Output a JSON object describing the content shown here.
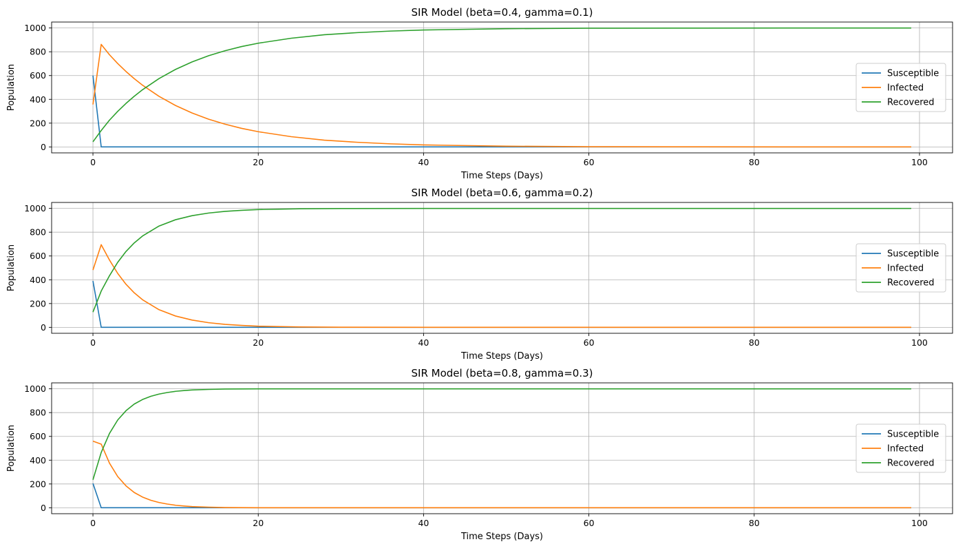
{
  "chart_data": [
    {
      "type": "line",
      "title": "SIR Model (beta=0.4, gamma=0.1)",
      "xlabel": "Time Steps (Days)",
      "ylabel": "Population",
      "xlim": [
        -5,
        104
      ],
      "ylim": [
        -50,
        1050
      ],
      "xticks": [
        0,
        20,
        40,
        60,
        80,
        100
      ],
      "yticks": [
        0,
        200,
        400,
        600,
        800,
        1000
      ],
      "grid": true,
      "legend_position": "center-right",
      "series": [
        {
          "name": "Susceptible",
          "color": "#1f77b4",
          "points": [
            [
              0,
              600
            ],
            [
              1,
              0
            ],
            [
              99,
              0
            ]
          ]
        },
        {
          "name": "Infected",
          "color": "#ff7f0e",
          "points": [
            [
              0,
              357
            ],
            [
              1,
              862
            ],
            [
              2,
              775
            ],
            [
              3,
              701
            ],
            [
              4,
              634
            ],
            [
              5,
              574
            ],
            [
              6,
              519
            ],
            [
              8,
              425
            ],
            [
              10,
              348
            ],
            [
              12,
              285
            ],
            [
              14,
              233
            ],
            [
              16,
              191
            ],
            [
              18,
              156
            ],
            [
              20,
              128
            ],
            [
              24,
              86
            ],
            [
              28,
              57
            ],
            [
              32,
              39
            ],
            [
              36,
              26
            ],
            [
              40,
              17
            ],
            [
              50,
              6
            ],
            [
              60,
              2
            ],
            [
              70,
              1
            ],
            [
              99,
              0
            ]
          ]
        },
        {
          "name": "Recovered",
          "color": "#2ca02c",
          "points": [
            [
              0,
              43
            ],
            [
              1,
              138
            ],
            [
              2,
              225
            ],
            [
              3,
              299
            ],
            [
              4,
              366
            ],
            [
              5,
              426
            ],
            [
              6,
              481
            ],
            [
              8,
              575
            ],
            [
              10,
              652
            ],
            [
              12,
              715
            ],
            [
              14,
              767
            ],
            [
              16,
              809
            ],
            [
              18,
              844
            ],
            [
              20,
              872
            ],
            [
              24,
              914
            ],
            [
              28,
              943
            ],
            [
              32,
              961
            ],
            [
              36,
              974
            ],
            [
              40,
              983
            ],
            [
              50,
              994
            ],
            [
              60,
              998
            ],
            [
              70,
              999
            ],
            [
              99,
              1000
            ]
          ]
        }
      ]
    },
    {
      "type": "line",
      "title": "SIR Model (beta=0.6, gamma=0.2)",
      "xlabel": "Time Steps (Days)",
      "ylabel": "Population",
      "xlim": [
        -5,
        104
      ],
      "ylim": [
        -50,
        1050
      ],
      "xticks": [
        0,
        20,
        40,
        60,
        80,
        100
      ],
      "yticks": [
        0,
        200,
        400,
        600,
        800,
        1000
      ],
      "grid": true,
      "legend_position": "center-right",
      "series": [
        {
          "name": "Susceptible",
          "color": "#1f77b4",
          "points": [
            [
              0,
              390
            ],
            [
              1,
              0
            ],
            [
              99,
              0
            ]
          ]
        },
        {
          "name": "Infected",
          "color": "#ff7f0e",
          "points": [
            [
              0,
              482
            ],
            [
              1,
              695
            ],
            [
              2,
              566
            ],
            [
              3,
              453
            ],
            [
              4,
              362
            ],
            [
              5,
              290
            ],
            [
              6,
              232
            ],
            [
              8,
              148
            ],
            [
              10,
              95
            ],
            [
              12,
              61
            ],
            [
              14,
              39
            ],
            [
              16,
              25
            ],
            [
              18,
              16
            ],
            [
              20,
              10
            ],
            [
              25,
              3
            ],
            [
              30,
              1
            ],
            [
              40,
              0
            ],
            [
              99,
              0
            ]
          ]
        },
        {
          "name": "Recovered",
          "color": "#2ca02c",
          "points": [
            [
              0,
              128
            ],
            [
              1,
              305
            ],
            [
              2,
              434
            ],
            [
              3,
              547
            ],
            [
              4,
              638
            ],
            [
              5,
              710
            ],
            [
              6,
              768
            ],
            [
              8,
              852
            ],
            [
              10,
              905
            ],
            [
              12,
              939
            ],
            [
              14,
              961
            ],
            [
              16,
              975
            ],
            [
              18,
              984
            ],
            [
              20,
              990
            ],
            [
              25,
              997
            ],
            [
              30,
              999
            ],
            [
              40,
              1000
            ],
            [
              99,
              1000
            ]
          ]
        }
      ]
    },
    {
      "type": "line",
      "title": "SIR Model (beta=0.8, gamma=0.3)",
      "xlabel": "Time Steps (Days)",
      "ylabel": "Population",
      "xlim": [
        -5,
        104
      ],
      "ylim": [
        -50,
        1050
      ],
      "xticks": [
        0,
        20,
        40,
        60,
        80,
        100
      ],
      "yticks": [
        0,
        200,
        400,
        600,
        800,
        1000
      ],
      "grid": true,
      "legend_position": "center-right",
      "series": [
        {
          "name": "Susceptible",
          "color": "#1f77b4",
          "points": [
            [
              0,
              205
            ],
            [
              1,
              0
            ],
            [
              99,
              0
            ]
          ]
        },
        {
          "name": "Infected",
          "color": "#ff7f0e",
          "points": [
            [
              0,
              560
            ],
            [
              1,
              535
            ],
            [
              2,
              375
            ],
            [
              3,
              262
            ],
            [
              4,
              184
            ],
            [
              5,
              128
            ],
            [
              6,
              90
            ],
            [
              7,
              63
            ],
            [
              8,
              44
            ],
            [
              9,
              31
            ],
            [
              10,
              21
            ],
            [
              11,
              15
            ],
            [
              12,
              10
            ],
            [
              14,
              5
            ],
            [
              16,
              2
            ],
            [
              20,
              0
            ],
            [
              99,
              0
            ]
          ]
        },
        {
          "name": "Recovered",
          "color": "#2ca02c",
          "points": [
            [
              0,
              235
            ],
            [
              1,
              465
            ],
            [
              2,
              625
            ],
            [
              3,
              738
            ],
            [
              4,
              816
            ],
            [
              5,
              872
            ],
            [
              6,
              910
            ],
            [
              7,
              937
            ],
            [
              8,
              956
            ],
            [
              9,
              969
            ],
            [
              10,
              979
            ],
            [
              11,
              985
            ],
            [
              12,
              990
            ],
            [
              14,
              995
            ],
            [
              16,
              998
            ],
            [
              20,
              1000
            ],
            [
              99,
              1000
            ]
          ]
        }
      ]
    }
  ]
}
